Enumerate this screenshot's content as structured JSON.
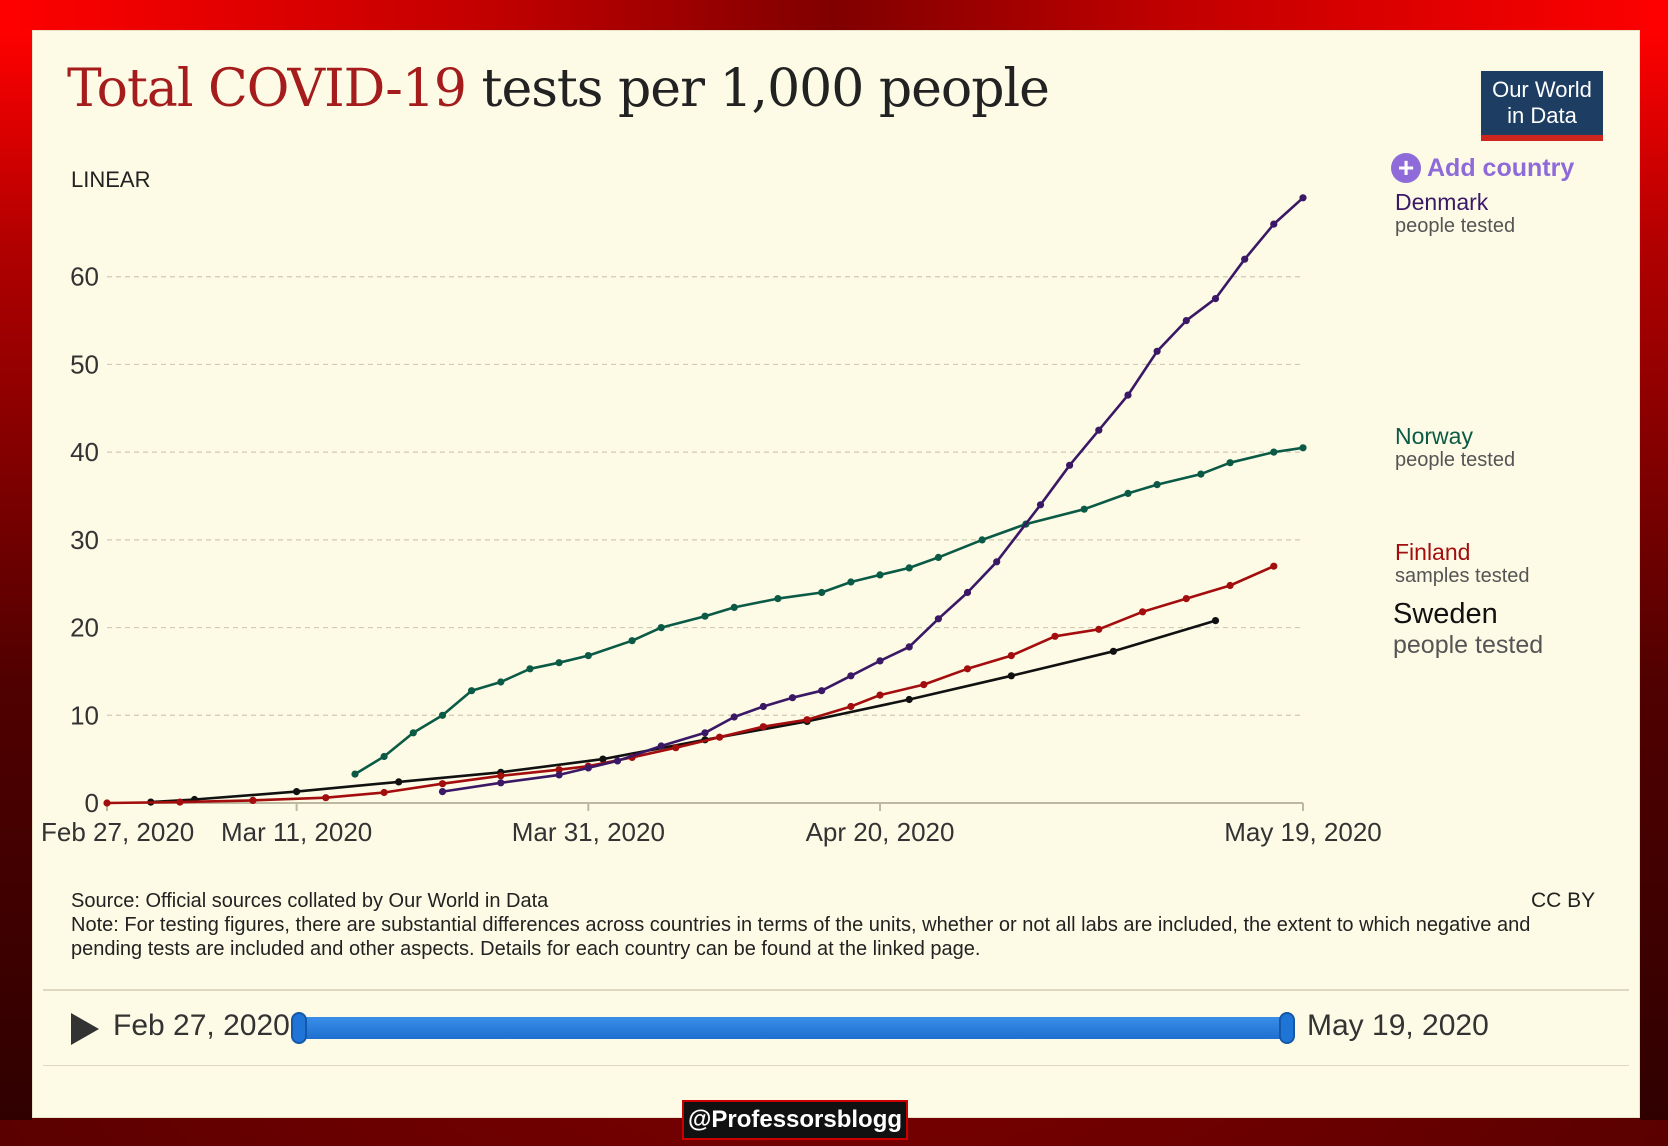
{
  "title": {
    "accent": "Total COVID-19",
    "rest": " tests per 1,000 people"
  },
  "logo": {
    "line1": "Our World",
    "line2": "in Data"
  },
  "scale_label": "LINEAR",
  "add_country_label": "Add country",
  "source": "Source: Official sources collated by Our World in Data",
  "note": "Note: For testing figures, there are substantial differences across countries in terms of the units, whether or not all labs are included, the extent to which negative and pending tests are included and other aspects. Details for each country can be found at the linked page.",
  "license": "CC BY",
  "timeline": {
    "start": "Feb 27, 2020",
    "end": "May 19, 2020"
  },
  "watermark": "@Professorsblogg",
  "colors": {
    "denmark": "#3a1866",
    "norway": "#0b5a46",
    "finland": "#a30d0d",
    "sweden": "#111111",
    "gridline": "#cfcab2",
    "accent": "#a51c1c"
  },
  "chart_data": {
    "type": "line",
    "title": "Total COVID-19 tests per 1,000 people",
    "xlabel": "",
    "ylabel": "",
    "ylim": [
      0,
      70
    ],
    "yticks": [
      "0",
      "10",
      "20",
      "30",
      "40",
      "50",
      "60"
    ],
    "ytick_values": [
      0,
      10,
      20,
      30,
      40,
      50,
      60
    ],
    "xticks": [
      "Feb 27, 2020",
      "Mar 11, 2020",
      "Mar 31, 2020",
      "Apr 20, 2020",
      "May 19, 2020"
    ],
    "xtick_dates": [
      "2020-02-27",
      "2020-03-11",
      "2020-03-31",
      "2020-04-20",
      "2020-05-19"
    ],
    "xlim": [
      "2020-02-27",
      "2020-05-19"
    ],
    "grid": true,
    "series": [
      {
        "key": "denmark",
        "name": "Denmark",
        "subtitle": "people tested",
        "points": [
          [
            "2020-03-21",
            1.3
          ],
          [
            "2020-03-25",
            2.3
          ],
          [
            "2020-03-29",
            3.2
          ],
          [
            "2020-03-31",
            4.0
          ],
          [
            "2020-04-02",
            4.8
          ],
          [
            "2020-04-05",
            6.5
          ],
          [
            "2020-04-08",
            8.0
          ],
          [
            "2020-04-10",
            9.8
          ],
          [
            "2020-04-12",
            11.0
          ],
          [
            "2020-04-14",
            12.0
          ],
          [
            "2020-04-16",
            12.8
          ],
          [
            "2020-04-18",
            14.5
          ],
          [
            "2020-04-20",
            16.2
          ],
          [
            "2020-04-22",
            17.8
          ],
          [
            "2020-04-24",
            21.0
          ],
          [
            "2020-04-26",
            24.0
          ],
          [
            "2020-04-28",
            27.5
          ],
          [
            "2020-05-01",
            34.0
          ],
          [
            "2020-05-03",
            38.5
          ],
          [
            "2020-05-05",
            42.5
          ],
          [
            "2020-05-07",
            46.5
          ],
          [
            "2020-05-09",
            51.5
          ],
          [
            "2020-05-11",
            55.0
          ],
          [
            "2020-05-13",
            57.5
          ],
          [
            "2020-05-15",
            62.0
          ],
          [
            "2020-05-17",
            66.0
          ],
          [
            "2020-05-19",
            69.0
          ]
        ]
      },
      {
        "key": "norway",
        "name": "Norway",
        "subtitle": "people tested",
        "points": [
          [
            "2020-03-15",
            3.3
          ],
          [
            "2020-03-17",
            5.3
          ],
          [
            "2020-03-19",
            8.0
          ],
          [
            "2020-03-21",
            10.0
          ],
          [
            "2020-03-23",
            12.8
          ],
          [
            "2020-03-25",
            13.8
          ],
          [
            "2020-03-27",
            15.3
          ],
          [
            "2020-03-29",
            16.0
          ],
          [
            "2020-03-31",
            16.8
          ],
          [
            "2020-04-03",
            18.5
          ],
          [
            "2020-04-05",
            20.0
          ],
          [
            "2020-04-08",
            21.3
          ],
          [
            "2020-04-10",
            22.3
          ],
          [
            "2020-04-13",
            23.3
          ],
          [
            "2020-04-16",
            24.0
          ],
          [
            "2020-04-18",
            25.2
          ],
          [
            "2020-04-20",
            26.0
          ],
          [
            "2020-04-22",
            26.8
          ],
          [
            "2020-04-24",
            28.0
          ],
          [
            "2020-04-27",
            30.0
          ],
          [
            "2020-04-30",
            31.8
          ],
          [
            "2020-05-04",
            33.5
          ],
          [
            "2020-05-07",
            35.3
          ],
          [
            "2020-05-09",
            36.3
          ],
          [
            "2020-05-12",
            37.5
          ],
          [
            "2020-05-14",
            38.8
          ],
          [
            "2020-05-17",
            40.0
          ],
          [
            "2020-05-19",
            40.5
          ]
        ]
      },
      {
        "key": "finland",
        "name": "Finland",
        "subtitle": "samples tested",
        "points": [
          [
            "2020-02-27",
            0.0
          ],
          [
            "2020-03-03",
            0.1
          ],
          [
            "2020-03-08",
            0.3
          ],
          [
            "2020-03-13",
            0.6
          ],
          [
            "2020-03-17",
            1.2
          ],
          [
            "2020-03-21",
            2.2
          ],
          [
            "2020-03-25",
            3.1
          ],
          [
            "2020-03-29",
            3.8
          ],
          [
            "2020-03-31",
            4.2
          ],
          [
            "2020-04-03",
            5.2
          ],
          [
            "2020-04-06",
            6.3
          ],
          [
            "2020-04-09",
            7.5
          ],
          [
            "2020-04-12",
            8.7
          ],
          [
            "2020-04-15",
            9.5
          ],
          [
            "2020-04-18",
            11.0
          ],
          [
            "2020-04-20",
            12.3
          ],
          [
            "2020-04-23",
            13.5
          ],
          [
            "2020-04-26",
            15.3
          ],
          [
            "2020-04-29",
            16.8
          ],
          [
            "2020-05-02",
            19.0
          ],
          [
            "2020-05-05",
            19.8
          ],
          [
            "2020-05-08",
            21.8
          ],
          [
            "2020-05-11",
            23.3
          ],
          [
            "2020-05-14",
            24.8
          ],
          [
            "2020-05-17",
            27.0
          ]
        ]
      },
      {
        "key": "sweden",
        "name": "Sweden",
        "subtitle": "people tested",
        "points": [
          [
            "2020-03-01",
            0.1
          ],
          [
            "2020-03-04",
            0.4
          ],
          [
            "2020-03-11",
            1.3
          ],
          [
            "2020-03-18",
            2.4
          ],
          [
            "2020-03-25",
            3.5
          ],
          [
            "2020-04-01",
            5.0
          ],
          [
            "2020-04-08",
            7.2
          ],
          [
            "2020-04-15",
            9.3
          ],
          [
            "2020-04-22",
            11.8
          ],
          [
            "2020-04-29",
            14.5
          ],
          [
            "2020-05-06",
            17.3
          ],
          [
            "2020-05-13",
            20.8
          ]
        ]
      }
    ]
  }
}
